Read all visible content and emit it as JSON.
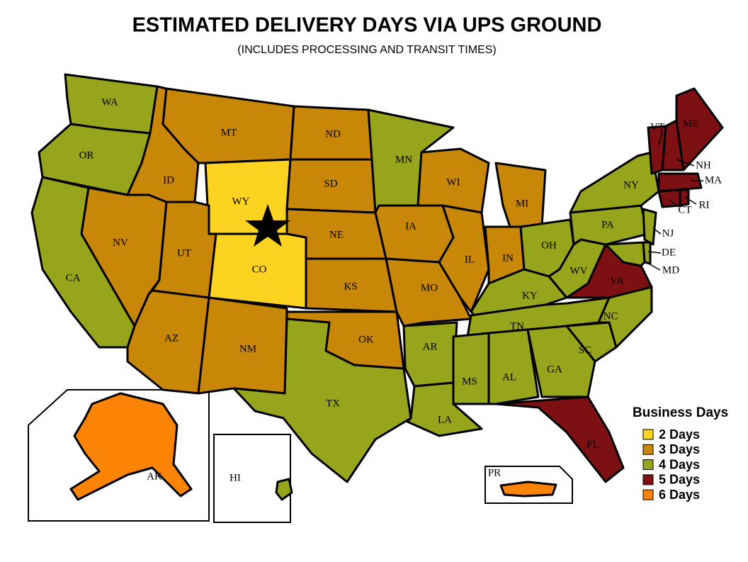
{
  "title": "ESTIMATED DELIVERY DAYS VIA UPS GROUND",
  "subtitle": "(INCLUDES PROCESSING AND TRANSIT TIMES)",
  "legend": {
    "title": "Business Days",
    "items": [
      {
        "label": "2 Days",
        "color": "#fcd320"
      },
      {
        "label": "3 Days",
        "color": "#c88707"
      },
      {
        "label": "4 Days",
        "color": "#96a51b"
      },
      {
        "label": "5 Days",
        "color": "#7d1012"
      },
      {
        "label": "6 Days",
        "color": "#fb8305"
      }
    ]
  },
  "states": [
    {
      "label": "WA",
      "color": "#96a51b"
    },
    {
      "label": "OR",
      "color": "#96a51b"
    },
    {
      "label": "CA",
      "color": "#96a51b"
    },
    {
      "label": "ID",
      "color": "#c88707"
    },
    {
      "label": "NV",
      "color": "#c88707"
    },
    {
      "label": "MT",
      "color": "#c88707"
    },
    {
      "label": "WY",
      "color": "#fcd320"
    },
    {
      "label": "UT",
      "color": "#c88707"
    },
    {
      "label": "AZ",
      "color": "#c88707"
    },
    {
      "label": "CO",
      "color": "#fcd320"
    },
    {
      "label": "NM",
      "color": "#c88707"
    },
    {
      "label": "ND",
      "color": "#c88707"
    },
    {
      "label": "SD",
      "color": "#c88707"
    },
    {
      "label": "NE",
      "color": "#c88707"
    },
    {
      "label": "KS",
      "color": "#c88707"
    },
    {
      "label": "OK",
      "color": "#c88707"
    },
    {
      "label": "TX",
      "color": "#96a51b"
    },
    {
      "label": "MN",
      "color": "#96a51b"
    },
    {
      "label": "IA",
      "color": "#c88707"
    },
    {
      "label": "MO",
      "color": "#c88707"
    },
    {
      "label": "AR",
      "color": "#96a51b"
    },
    {
      "label": "LA",
      "color": "#96a51b"
    },
    {
      "label": "WI",
      "color": "#c88707"
    },
    {
      "label": "IL",
      "color": "#c88707"
    },
    {
      "label": "MI",
      "color": "#c88707"
    },
    {
      "label": "IN",
      "color": "#c88707"
    },
    {
      "label": "OH",
      "color": "#96a51b"
    },
    {
      "label": "KY",
      "color": "#96a51b"
    },
    {
      "label": "TN",
      "color": "#96a51b"
    },
    {
      "label": "MS",
      "color": "#96a51b"
    },
    {
      "label": "AL",
      "color": "#96a51b"
    },
    {
      "label": "GA",
      "color": "#96a51b"
    },
    {
      "label": "SC",
      "color": "#96a51b"
    },
    {
      "label": "NC",
      "color": "#96a51b"
    },
    {
      "label": "VA",
      "color": "#7d1012"
    },
    {
      "label": "WV",
      "color": "#96a51b"
    },
    {
      "label": "PA",
      "color": "#96a51b"
    },
    {
      "label": "NY",
      "color": "#96a51b"
    },
    {
      "label": "VT",
      "color": "#7d1012"
    },
    {
      "label": "NH",
      "color": "#7d1012"
    },
    {
      "label": "ME",
      "color": "#7d1012"
    },
    {
      "label": "MA",
      "color": "#7d1012"
    },
    {
      "label": "CT",
      "color": "#7d1012"
    },
    {
      "label": "RI",
      "color": "#7d1012"
    },
    {
      "label": "NJ",
      "color": "#96a51b"
    },
    {
      "label": "DE",
      "color": "#96a51b"
    },
    {
      "label": "MD",
      "color": "#96a51b"
    },
    {
      "label": "FL",
      "color": "#7d1012"
    },
    {
      "label": "AK",
      "color": "#fb8305"
    },
    {
      "label": "HI",
      "color": "#96a51b"
    },
    {
      "label": "PR",
      "color": "#fb8305"
    }
  ]
}
